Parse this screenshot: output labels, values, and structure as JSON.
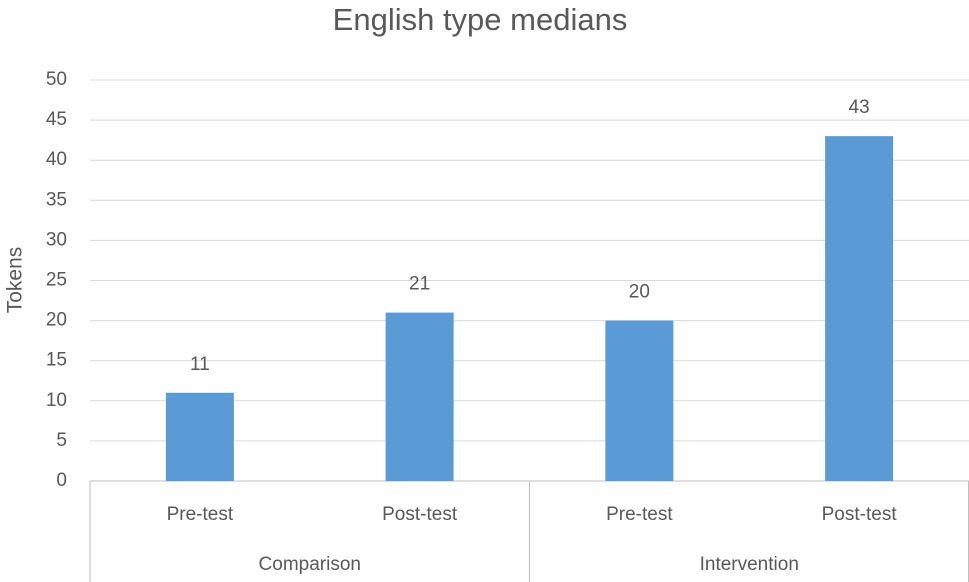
{
  "chart_data": {
    "type": "bar",
    "title": "English type medians",
    "y_label": "Tokens",
    "categories": [
      "Pre-test",
      "Post-test",
      "Pre-test",
      "Post-test"
    ],
    "groups": [
      "Comparison",
      "Intervention"
    ],
    "values": [
      11,
      21,
      20,
      43
    ],
    "color": "#5b9bd5",
    "ylim": [
      0,
      50
    ],
    "yticks": [
      0,
      5,
      10,
      15,
      20,
      25,
      30,
      35,
      40,
      45,
      50
    ],
    "grid": true,
    "data_labels": true
  }
}
